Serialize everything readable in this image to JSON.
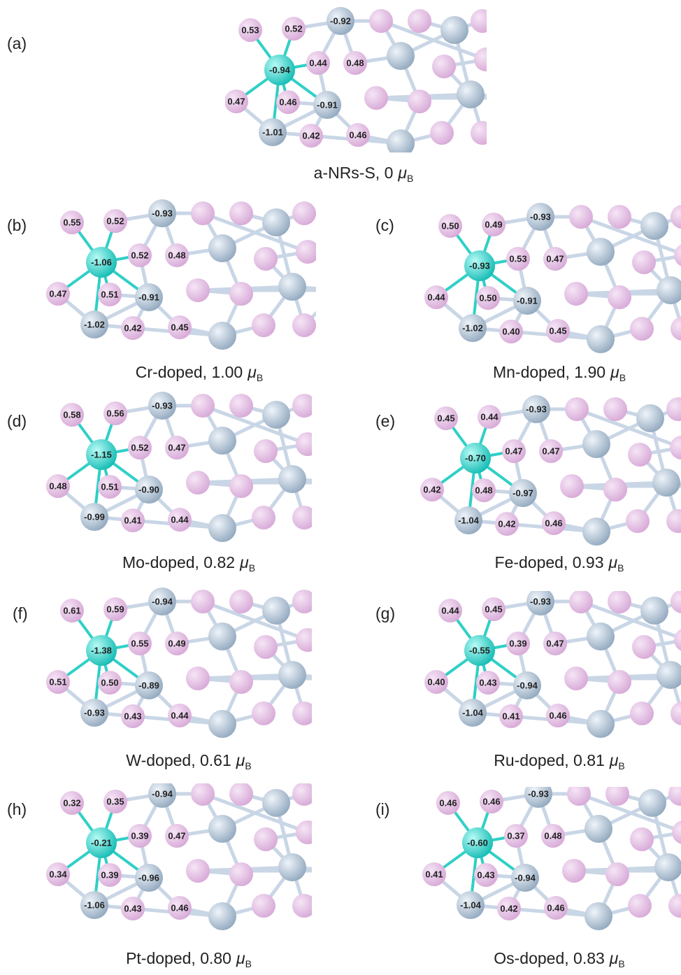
{
  "unit": {
    "symbol": "μ",
    "subscript": "B"
  },
  "panels": [
    {
      "letter": "(a)",
      "caption": "a-NRs-S, 0",
      "labels": [
        "0.53",
        "0.52",
        "-0.92",
        "-0.94",
        "0.44",
        "0.48",
        "0.47",
        "0.46",
        "-0.91",
        "-1.01",
        "0.42",
        "0.46"
      ]
    },
    {
      "letter": "(b)",
      "caption": "Cr-doped, 1.00",
      "labels": [
        "0.55",
        "0.52",
        "-0.93",
        "-1.06",
        "0.52",
        "0.48",
        "0.47",
        "0.51",
        "-0.91",
        "-1.02",
        "0.42",
        "0.45"
      ]
    },
    {
      "letter": "(c)",
      "caption": "Mn-doped, 1.90",
      "labels": [
        "0.50",
        "0.49",
        "-0.93",
        "-0.93",
        "0.53",
        "0.47",
        "0.44",
        "0.50",
        "-0.91",
        "-1.02",
        "0.40",
        "0.45"
      ]
    },
    {
      "letter": "(d)",
      "caption": "Mo-doped, 0.82",
      "labels": [
        "0.58",
        "0.56",
        "-0.93",
        "-1.15",
        "0.52",
        "0.47",
        "0.48",
        "0.51",
        "-0.90",
        "-0.99",
        "0.41",
        "0.44"
      ]
    },
    {
      "letter": "(e)",
      "caption": "Fe-doped, 0.93",
      "labels": [
        "0.45",
        "0.44",
        "-0.93",
        "-0.70",
        "0.47",
        "0.47",
        "0.42",
        "0.48",
        "-0.97",
        "-1.04",
        "0.42",
        "0.46"
      ]
    },
    {
      "letter": "(f)",
      "caption": "W-doped, 0.61",
      "labels": [
        "0.61",
        "0.59",
        "-0.94",
        "-1.38",
        "0.55",
        "0.49",
        "0.51",
        "0.50",
        "-0.89",
        "-0.93",
        "0.43",
        "0.44"
      ]
    },
    {
      "letter": "(g)",
      "caption": "Ru-doped, 0.81",
      "labels": [
        "0.44",
        "0.45",
        "-0.93",
        "-0.55",
        "0.39",
        "0.47",
        "0.40",
        "0.43",
        "-0.94",
        "-1.04",
        "0.41",
        "0.46"
      ]
    },
    {
      "letter": "(h)",
      "caption": "Pt-doped, 0.80",
      "labels": [
        "0.32",
        "0.35",
        "-0.94",
        "-0.21",
        "0.39",
        "0.47",
        "0.34",
        "0.39",
        "-0.96",
        "-1.06",
        "0.43",
        "0.46"
      ]
    },
    {
      "letter": "(i)",
      "caption": "Os-doped, 0.83",
      "labels": [
        "0.46",
        "0.46",
        "-0.93",
        "-0.60",
        "0.37",
        "0.48",
        "0.41",
        "0.43",
        "-0.94",
        "-1.04",
        "0.42",
        "0.46"
      ]
    }
  ]
}
